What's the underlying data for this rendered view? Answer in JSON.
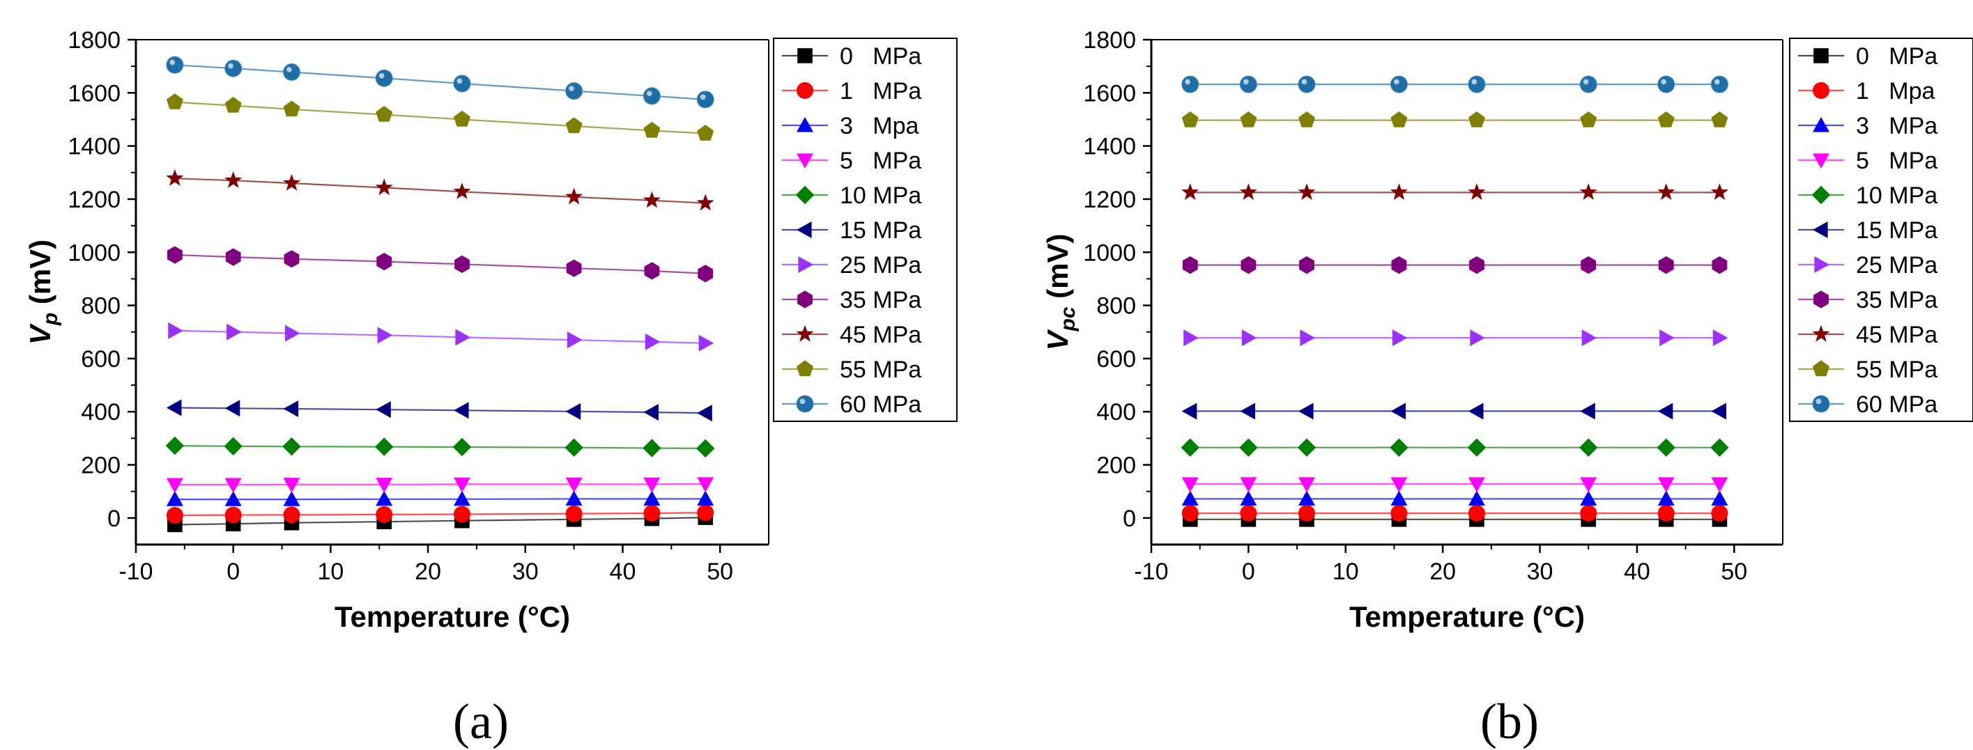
{
  "chart_data": [
    {
      "type": "line",
      "panel_label": "(a)",
      "xlabel": "Temperature (°C)",
      "ylabel_main": "V",
      "ylabel_sub": "p",
      "ylabel_unit": " (mV)",
      "xlim": [
        -10,
        55
      ],
      "ylim": [
        -100,
        1800
      ],
      "xticks": [
        -10,
        0,
        10,
        20,
        30,
        40,
        50
      ],
      "yticks": [
        0,
        200,
        400,
        600,
        800,
        1000,
        1200,
        1400,
        1600,
        1800
      ],
      "x": [
        -6,
        0,
        6,
        15.5,
        23.5,
        35,
        43,
        48.5
      ],
      "series": [
        {
          "name": "0   MPa",
          "color": "#000000",
          "marker": "square",
          "values": [
            -25,
            -22,
            -18,
            -14,
            -10,
            -5,
            -2,
            2
          ]
        },
        {
          "name": "1   MPa",
          "color": "#ff0000",
          "marker": "circle",
          "values": [
            10,
            11,
            12,
            13,
            14,
            16,
            18,
            20
          ]
        },
        {
          "name": "3   Mpa",
          "color": "#0000ff",
          "marker": "triangle-up",
          "values": [
            70,
            70,
            70,
            71,
            71,
            72,
            72,
            72
          ]
        },
        {
          "name": "5   MPa",
          "color": "#ff00ff",
          "marker": "triangle-down",
          "values": [
            125,
            125,
            126,
            126,
            127,
            127,
            127,
            128
          ]
        },
        {
          "name": "10 MPa",
          "color": "#008000",
          "marker": "diamond",
          "values": [
            272,
            270,
            269,
            268,
            267,
            265,
            263,
            262
          ]
        },
        {
          "name": "15 MPa",
          "color": "#000080",
          "marker": "triangle-left",
          "values": [
            415,
            413,
            411,
            408,
            405,
            401,
            398,
            395
          ]
        },
        {
          "name": "25 MPa",
          "color": "#9b30ff",
          "marker": "triangle-right",
          "values": [
            705,
            700,
            695,
            688,
            680,
            670,
            663,
            658
          ]
        },
        {
          "name": "35 MPa",
          "color": "#800080",
          "marker": "hexagon",
          "values": [
            990,
            982,
            975,
            965,
            955,
            940,
            930,
            920
          ]
        },
        {
          "name": "45 MPa",
          "color": "#800000",
          "marker": "star",
          "values": [
            1278,
            1270,
            1260,
            1243,
            1228,
            1208,
            1195,
            1185
          ]
        },
        {
          "name": "55 MPa",
          "color": "#808000",
          "marker": "pentagon",
          "values": [
            1565,
            1552,
            1538,
            1518,
            1500,
            1475,
            1458,
            1447
          ]
        },
        {
          "name": "60 MPa",
          "color": "#1e6fa8",
          "marker": "sphere",
          "values": [
            1705,
            1692,
            1678,
            1655,
            1635,
            1607,
            1588,
            1575
          ]
        }
      ]
    },
    {
      "type": "line",
      "panel_label": "(b)",
      "xlabel": "Temperature (°C)",
      "ylabel_main": "V",
      "ylabel_sub": "pc",
      "ylabel_unit": " (mV)",
      "xlim": [
        -10,
        55
      ],
      "ylim": [
        -100,
        1800
      ],
      "xticks": [
        -10,
        0,
        10,
        20,
        30,
        40,
        50
      ],
      "yticks": [
        0,
        200,
        400,
        600,
        800,
        1000,
        1200,
        1400,
        1600,
        1800
      ],
      "x": [
        -6,
        0,
        6,
        15.5,
        23.5,
        35,
        43,
        48.5
      ],
      "series": [
        {
          "name": "0   MPa",
          "color": "#000000",
          "marker": "square",
          "values": [
            -5,
            -5,
            -5,
            -5,
            -5,
            -5,
            -5,
            -5
          ]
        },
        {
          "name": "1   Mpa",
          "color": "#ff0000",
          "marker": "circle",
          "values": [
            18,
            18,
            18,
            18,
            18,
            18,
            18,
            18
          ]
        },
        {
          "name": "3   MPa",
          "color": "#0000ff",
          "marker": "triangle-up",
          "values": [
            72,
            72,
            72,
            72,
            72,
            72,
            72,
            72
          ]
        },
        {
          "name": "5   MPa",
          "color": "#ff00ff",
          "marker": "triangle-down",
          "values": [
            128,
            128,
            128,
            128,
            128,
            128,
            128,
            128
          ]
        },
        {
          "name": "10 MPa",
          "color": "#008000",
          "marker": "diamond",
          "values": [
            265,
            265,
            265,
            265,
            265,
            265,
            265,
            265
          ]
        },
        {
          "name": "15 MPa",
          "color": "#000080",
          "marker": "triangle-left",
          "values": [
            402,
            402,
            402,
            402,
            402,
            402,
            402,
            402
          ]
        },
        {
          "name": "25 MPa",
          "color": "#9b30ff",
          "marker": "triangle-right",
          "values": [
            678,
            678,
            678,
            678,
            678,
            678,
            678,
            678
          ]
        },
        {
          "name": "35 MPa",
          "color": "#800080",
          "marker": "hexagon",
          "values": [
            952,
            952,
            952,
            952,
            952,
            952,
            952,
            952
          ]
        },
        {
          "name": "45 MPa",
          "color": "#800000",
          "marker": "star",
          "values": [
            1225,
            1225,
            1225,
            1225,
            1225,
            1225,
            1225,
            1225
          ]
        },
        {
          "name": "55 MPa",
          "color": "#808000",
          "marker": "pentagon",
          "values": [
            1497,
            1497,
            1497,
            1497,
            1497,
            1497,
            1497,
            1497
          ]
        },
        {
          "name": "60 MPa",
          "color": "#1e6fa8",
          "marker": "sphere",
          "values": [
            1632,
            1632,
            1632,
            1632,
            1632,
            1632,
            1632,
            1632
          ]
        }
      ]
    }
  ]
}
